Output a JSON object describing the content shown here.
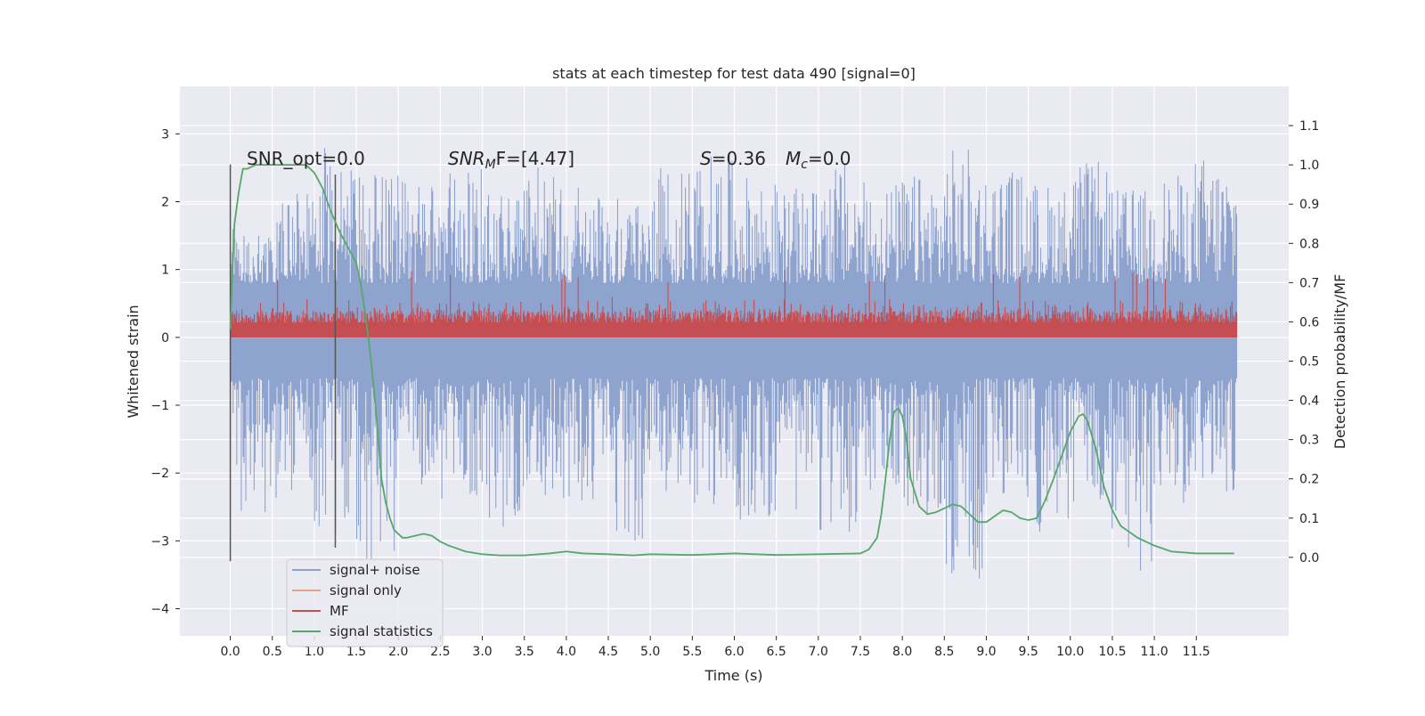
{
  "chart_data": {
    "type": "line",
    "title": "stats at each timestep for test data 490 [signal=0]",
    "xlabel": "Time (s)",
    "ylabel": "Whitened strain",
    "ylabel_right": "Detection probability/MF",
    "xlim": [
      -0.6,
      12.6
    ],
    "ylim": [
      -4.4,
      3.7
    ],
    "ylim_right": [
      -0.2,
      1.2
    ],
    "x_ticks": [
      0.0,
      0.5,
      1.0,
      1.5,
      2.0,
      2.5,
      3.0,
      3.5,
      4.0,
      4.5,
      5.0,
      5.5,
      6.0,
      6.5,
      7.0,
      7.5,
      8.0,
      8.5,
      9.0,
      9.5,
      10.0,
      10.5,
      11.0,
      11.5
    ],
    "x_tick_labels": [
      "0.0",
      "0.5",
      "1.0",
      "1.5",
      "2.0",
      "2.5",
      "3.0",
      "3.5",
      "4.0",
      "4.5",
      "5.0",
      "5.5",
      "6.0",
      "6.5",
      "7.0",
      "7.5",
      "8.0",
      "8.5",
      "9.0",
      "9.5",
      "10.0",
      "10.5",
      "11.0",
      "11.5"
    ],
    "y_ticks": [
      3,
      2,
      1,
      0,
      -1,
      -2,
      -3,
      -4
    ],
    "y_tick_labels": [
      "3",
      "2",
      "1",
      "0",
      "−1",
      "−2",
      "−3",
      "−4"
    ],
    "y_right_ticks": [
      1.1,
      1.0,
      0.9,
      0.8,
      0.7,
      0.6,
      0.5,
      0.4,
      0.3,
      0.2,
      0.1,
      0.0
    ],
    "y_right_tick_labels": [
      "1.1",
      "1.0",
      "0.9",
      "0.8",
      "0.7",
      "0.6",
      "0.5",
      "0.4",
      "0.3",
      "0.2",
      "0.1",
      "0.0"
    ],
    "grid": true,
    "legend_position": "lower-left",
    "annotations": {
      "snr_opt": "SNR_opt=0.0",
      "snr_mf_sym": "SNR",
      "snr_mf_sub": "M",
      "snr_mf_rest": "F=[4.47]",
      "s_sym": "S",
      "s_rest": "=0.36",
      "mc_sym": "M",
      "mc_sub": "c",
      "mc_rest": "=0.0"
    },
    "vertical_markers": [
      {
        "x": 0.0,
        "y_range": [
          -3.3,
          2.55
        ]
      },
      {
        "x": 1.25,
        "y_range": [
          -3.1,
          2.4
        ]
      }
    ],
    "series": [
      {
        "name": "signal+ noise",
        "axis": "left",
        "color": "#8fa3cf",
        "x_range": [
          0.0,
          11.98
        ],
        "envelope_upper": [
          1.6,
          2.2,
          2.8,
          2.4,
          2.3,
          2.5,
          2.2,
          2.6,
          2.3,
          2.1,
          2.5,
          2.7,
          2.4,
          2.2,
          2.6,
          2.3,
          2.4,
          2.8,
          2.5,
          2.3,
          2.6,
          2.2,
          2.4,
          2.7
        ],
        "envelope_lower": [
          -2.6,
          -2.4,
          -2.9,
          -3.3,
          -2.2,
          -2.5,
          -2.8,
          -2.4,
          -2.6,
          -3.0,
          -2.4,
          -2.5,
          -2.7,
          -2.6,
          -2.9,
          -2.4,
          -2.7,
          -3.6,
          -2.5,
          -2.9,
          -2.6,
          -3.5,
          -2.5,
          -2.3
        ]
      },
      {
        "name": "signal only",
        "axis": "left",
        "color": "#e8a08a",
        "flat_value": 0.0
      },
      {
        "name": "MF",
        "axis": "left",
        "color": "#c44e52",
        "baseline": 0.0,
        "typical_peak": 0.6,
        "max_peak": 1.0
      },
      {
        "name": "signal statistics",
        "axis": "right",
        "color": "#55a868",
        "x": [
          0.0,
          0.02,
          0.05,
          0.1,
          0.15,
          0.2,
          0.3,
          0.4,
          0.5,
          0.6,
          0.7,
          0.8,
          0.9,
          1.0,
          1.05,
          1.1,
          1.15,
          1.2,
          1.3,
          1.4,
          1.5,
          1.55,
          1.6,
          1.65,
          1.7,
          1.75,
          1.8,
          1.85,
          1.9,
          1.95,
          2.0,
          2.05,
          2.1,
          2.2,
          2.3,
          2.4,
          2.5,
          2.6,
          2.8,
          3.0,
          3.2,
          3.5,
          3.8,
          4.0,
          4.2,
          4.5,
          4.8,
          5.0,
          5.5,
          6.0,
          6.5,
          7.0,
          7.5,
          7.6,
          7.7,
          7.75,
          7.8,
          7.85,
          7.9,
          7.95,
          8.0,
          8.05,
          8.1,
          8.2,
          8.3,
          8.4,
          8.5,
          8.6,
          8.7,
          8.8,
          8.9,
          9.0,
          9.1,
          9.2,
          9.3,
          9.4,
          9.5,
          9.6,
          9.7,
          9.8,
          9.9,
          10.0,
          10.1,
          10.15,
          10.2,
          10.3,
          10.4,
          10.5,
          10.6,
          10.8,
          11.0,
          11.2,
          11.5,
          11.8,
          11.95
        ],
        "y": [
          0.58,
          0.7,
          0.85,
          0.93,
          0.99,
          0.99,
          1.0,
          1.0,
          1.0,
          1.0,
          1.0,
          1.0,
          1.0,
          0.98,
          0.96,
          0.94,
          0.91,
          0.88,
          0.83,
          0.79,
          0.75,
          0.7,
          0.63,
          0.55,
          0.45,
          0.33,
          0.2,
          0.14,
          0.1,
          0.07,
          0.06,
          0.05,
          0.05,
          0.055,
          0.06,
          0.055,
          0.04,
          0.03,
          0.015,
          0.008,
          0.005,
          0.005,
          0.01,
          0.015,
          0.01,
          0.008,
          0.005,
          0.008,
          0.006,
          0.01,
          0.006,
          0.008,
          0.01,
          0.02,
          0.05,
          0.11,
          0.2,
          0.3,
          0.37,
          0.38,
          0.36,
          0.3,
          0.2,
          0.13,
          0.11,
          0.115,
          0.125,
          0.135,
          0.13,
          0.11,
          0.09,
          0.09,
          0.105,
          0.12,
          0.115,
          0.1,
          0.095,
          0.1,
          0.145,
          0.2,
          0.26,
          0.32,
          0.36,
          0.365,
          0.35,
          0.28,
          0.18,
          0.12,
          0.08,
          0.05,
          0.03,
          0.015,
          0.01,
          0.01,
          0.01
        ]
      }
    ]
  }
}
